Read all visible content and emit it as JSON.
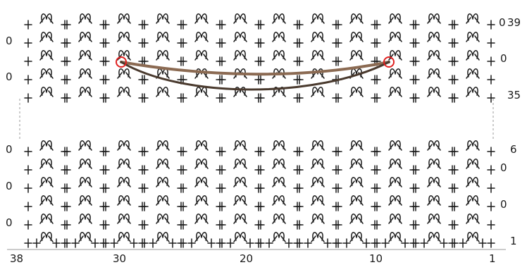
{
  "row_labels": [
    {
      "row": "top-1",
      "text": "39"
    },
    {
      "row": "top-3",
      "text": "0"
    },
    {
      "row": "top-5",
      "text": "35"
    },
    {
      "row": "bot-1",
      "text": "6"
    },
    {
      "row": "bot-2",
      "text": "0"
    },
    {
      "row": "bot-4",
      "text": "0"
    },
    {
      "row": "bot-6",
      "text": "1"
    }
  ],
  "left_markers": [
    {
      "row": "top-2",
      "text": "0"
    },
    {
      "row": "top-4",
      "text": "0"
    },
    {
      "row": "bot-1",
      "text": "0"
    },
    {
      "row": "bot-3",
      "text": "0"
    },
    {
      "row": "bot-5",
      "text": "0"
    }
  ],
  "right_markers": [
    {
      "row": "top-1",
      "text": "0"
    },
    {
      "row": "top-3",
      "text": "0"
    },
    {
      "row": "bot-2",
      "text": "0"
    },
    {
      "row": "bot-4",
      "text": "0"
    },
    {
      "row": "bot-6",
      "text": "0"
    }
  ],
  "stitch_numbers": [
    "38",
    "30",
    "20",
    "10",
    "1"
  ],
  "colors": {
    "ink": "#1a1a1a",
    "strand_light": "#8b6a52",
    "strand_dark": "#4a3a2e",
    "marker_ring": "#e02020",
    "separator": "#9a9a9a"
  },
  "symbols": {
    "single_crochet": "+",
    "picot_shell": "ᐱ-shell",
    "chain": "0"
  }
}
